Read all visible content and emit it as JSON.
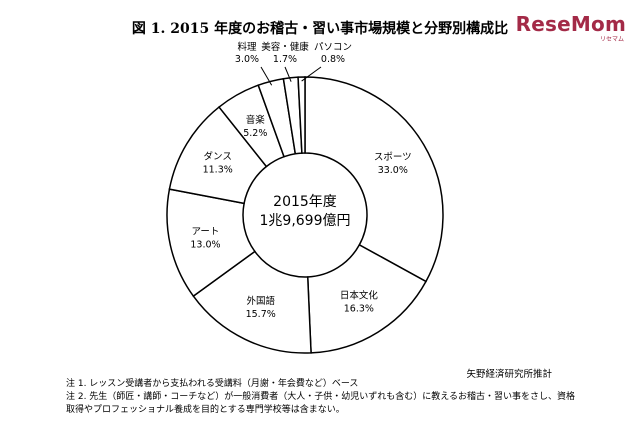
{
  "title": "図 1. 2015 年度のお稽古・習い事市場規模と分野別構成比",
  "logo": "ReseMom",
  "logo_sub": "リセマム",
  "center": {
    "line1": "2015年度",
    "line2": "1兆9,699億円"
  },
  "source": "矢野経済研究所推計",
  "notes": [
    "注 1. レッスン受講者から支払われる受講料（月謝・年会費など）ベース",
    "注 2. 先生（師匠・講師・コーチなど）が一般消費者（大人・子供・幼児いずれも含む）に教えるお稽古・習い事をさし、資格",
    "取得やプロフェッショナル養成を目的とする専門学校等は含まない。"
  ],
  "chart_data": {
    "type": "pie",
    "variant": "donut",
    "start": "12 o'clock, clockwise",
    "categories": [
      "スポーツ",
      "日本文化",
      "外国語",
      "アート",
      "ダンス",
      "音楽",
      "料理",
      "美容・健康",
      "パソコン"
    ],
    "value_labels": [
      "33.0%",
      "16.3%",
      "15.7%",
      "13.0%",
      "11.3%",
      "5.2%",
      "3.0%",
      "1.7%",
      "0.8%"
    ],
    "values": [
      33.0,
      16.3,
      15.7,
      13.0,
      11.3,
      5.2,
      3.0,
      1.7,
      0.8
    ],
    "colors": {
      "fill": "#ffffff",
      "stroke": "#000000"
    }
  }
}
